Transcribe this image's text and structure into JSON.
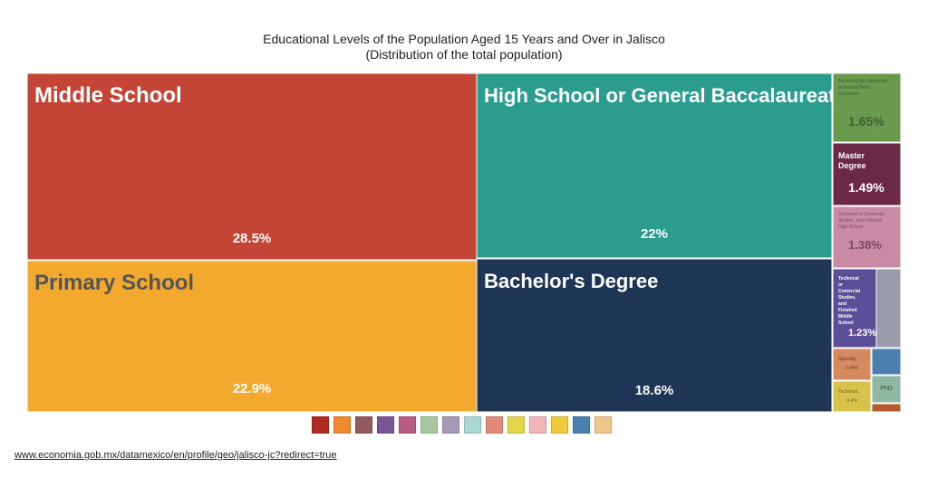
{
  "chart_data": {
    "type": "treemap",
    "title": "Educational Levels of the Population Aged 15 Years and Over in Jalisco",
    "subtitle": "(Distribution of the total population)",
    "items": [
      {
        "label": "Middle School",
        "value_label": "28.5%",
        "value": 28.5,
        "color": "#c44536"
      },
      {
        "label": "High School or General Baccalaureate",
        "value_label": "22%",
        "value": 22.0,
        "color": "#2a9d8f"
      },
      {
        "label": "Primary School",
        "value_label": "22.9%",
        "value": 22.9,
        "color": "#f2a92e"
      },
      {
        "label": "Bachelor's Degree",
        "value_label": "18.6%",
        "value": 18.6,
        "color": "#1f3556"
      },
      {
        "label": "Technical Baccalaureate or Normal Basic Education",
        "value_label": "1.65%",
        "value": 1.65,
        "color": "#6a9a4e"
      },
      {
        "label": "Master Degree",
        "value_label": "1.49%",
        "value": 1.49,
        "color": "#6b2944"
      },
      {
        "label": "Technical or Comercial Studies, and Finished High School",
        "value_label": "1.38%",
        "value": 1.38,
        "color": "#c98aa6"
      },
      {
        "label": "Technical or Comercial Studies, and Finished Middle School",
        "value_label": "1.23%",
        "value": 1.23,
        "color": "#5c4e96"
      },
      {
        "label": "Specialty",
        "value_label": "0.44%",
        "value": 0.44,
        "color": "#d4895f"
      },
      {
        "label": "Technical...",
        "value_label": "0.4%",
        "value": 0.4,
        "color": "#d8c24a"
      },
      {
        "label": "PhD",
        "value_label": "",
        "color": "#8fb8a3"
      },
      {
        "label": "",
        "value_label": "",
        "color": "#9a9cab"
      },
      {
        "label": "",
        "value_label": "",
        "color": "#4a7fb0"
      },
      {
        "label": "",
        "value_label": "",
        "color": "#b5582e"
      }
    ]
  },
  "legend": {
    "colors": [
      "#b02a24",
      "#ef8a2f",
      "#935a5e",
      "#7a5598",
      "#b85c80",
      "#a7c6a0",
      "#a49ab8",
      "#a9d8d3",
      "#e08a78",
      "#e3d64a",
      "#efb5b7",
      "#f1c93c",
      "#4a7fb0",
      "#f0c68c"
    ]
  },
  "footer": {
    "source": "www.economia.gob.mx/datamexico/en/profile/geo/jalisco-jc?redirect=true"
  }
}
